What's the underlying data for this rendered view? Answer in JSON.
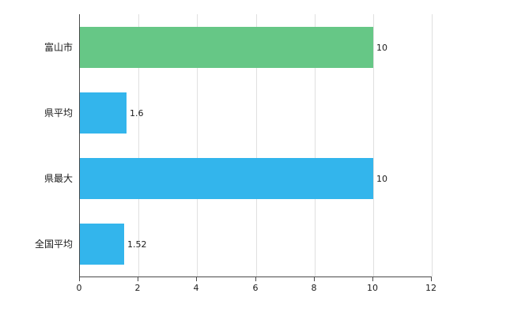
{
  "chart_data": {
    "type": "bar",
    "orientation": "horizontal",
    "title": "",
    "categories": [
      "富山市",
      "県平均",
      "県最大",
      "全国平均"
    ],
    "values": [
      10,
      1.6,
      10,
      1.52
    ],
    "value_labels": [
      "10",
      "1.6",
      "10",
      "1.52"
    ],
    "bar_colors": [
      "#66c786",
      "#33b5ec",
      "#33b5ec",
      "#33b5ec"
    ],
    "xlim": [
      0,
      12
    ],
    "x_ticks": [
      0,
      2,
      4,
      6,
      8,
      10,
      12
    ],
    "x_tick_labels": [
      "0",
      "2",
      "4",
      "6",
      "8",
      "10",
      "12"
    ],
    "grid": "vertical-gridlines",
    "legend": "none",
    "background_color": "#ffffff",
    "axis_color": "#4a4a4a",
    "gridline_color": "#e0e0e0"
  }
}
